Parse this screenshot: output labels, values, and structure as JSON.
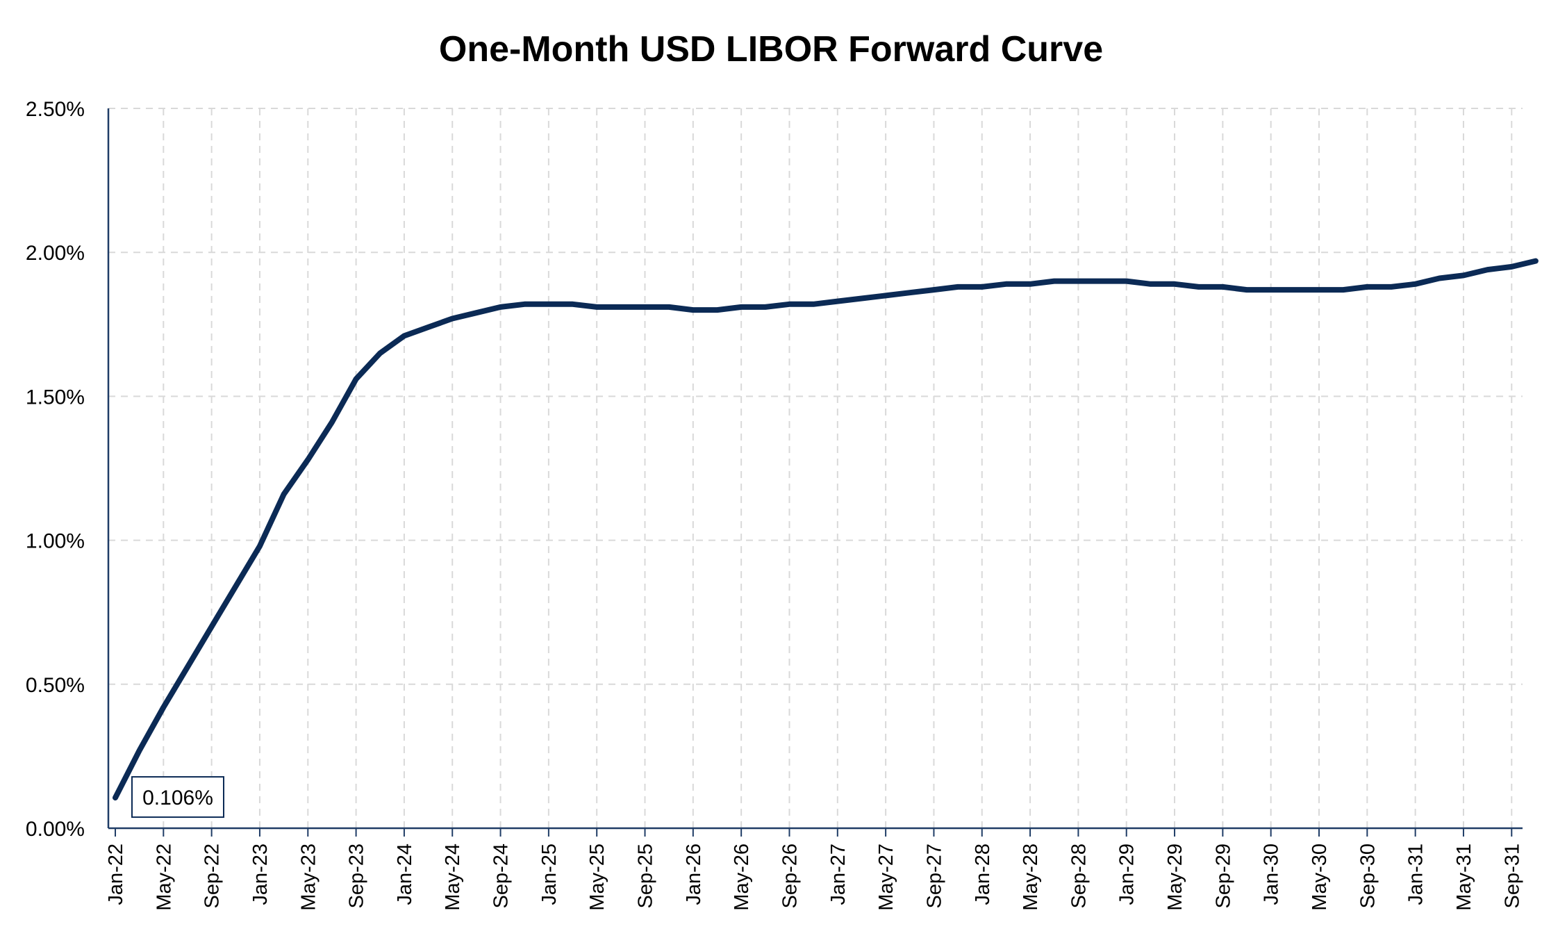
{
  "chart_data": {
    "type": "line",
    "title": "One-Month USD LIBOR Forward Curve",
    "xlabel": "",
    "ylabel": "",
    "ylim": [
      0,
      2.5
    ],
    "ytick_labels": [
      "0.00%",
      "0.50%",
      "1.00%",
      "1.50%",
      "2.00%",
      "2.50%"
    ],
    "ytick_values": [
      0,
      0.5,
      1.0,
      1.5,
      2.0,
      2.5
    ],
    "xtick_labels": [
      "Jan-22",
      "May-22",
      "Sep-22",
      "Jan-23",
      "May-23",
      "Sep-23",
      "Jan-24",
      "May-24",
      "Sep-24",
      "Jan-25",
      "May-25",
      "Sep-25",
      "Jan-26",
      "May-26",
      "Sep-26",
      "Jan-27",
      "May-27",
      "Sep-27",
      "Jan-28",
      "May-28",
      "Sep-28",
      "Jan-29",
      "May-29",
      "Sep-29",
      "Jan-30",
      "May-30",
      "Sep-30",
      "Jan-31",
      "May-31",
      "Sep-31"
    ],
    "grid": true,
    "legend": "none",
    "series": [
      {
        "color": "#0b2a55",
        "x": [
          "Jan-22",
          "Mar-22",
          "May-22",
          "Jul-22",
          "Sep-22",
          "Nov-22",
          "Jan-23",
          "Mar-23",
          "May-23",
          "Jul-23",
          "Sep-23",
          "Nov-23",
          "Jan-24",
          "Mar-24",
          "May-24",
          "Jul-24",
          "Sep-24",
          "Nov-24",
          "Jan-25",
          "Mar-25",
          "May-25",
          "Jul-25",
          "Sep-25",
          "Nov-25",
          "Jan-26",
          "Mar-26",
          "May-26",
          "Jul-26",
          "Sep-26",
          "Nov-26",
          "Jan-27",
          "Mar-27",
          "May-27",
          "Jul-27",
          "Sep-27",
          "Nov-27",
          "Jan-28",
          "Mar-28",
          "May-28",
          "Jul-28",
          "Sep-28",
          "Nov-28",
          "Jan-29",
          "Mar-29",
          "May-29",
          "Jul-29",
          "Sep-29",
          "Nov-29",
          "Jan-30",
          "Mar-30",
          "May-30",
          "Jul-30",
          "Sep-30",
          "Nov-30",
          "Jan-31",
          "Mar-31",
          "May-31",
          "Jul-31",
          "Sep-31",
          "Nov-31"
        ],
        "values": [
          0.106,
          0.27,
          0.42,
          0.56,
          0.7,
          0.84,
          0.98,
          1.16,
          1.28,
          1.41,
          1.56,
          1.65,
          1.71,
          1.74,
          1.77,
          1.79,
          1.81,
          1.82,
          1.82,
          1.82,
          1.81,
          1.81,
          1.81,
          1.81,
          1.8,
          1.8,
          1.81,
          1.81,
          1.82,
          1.82,
          1.83,
          1.84,
          1.85,
          1.86,
          1.87,
          1.88,
          1.88,
          1.89,
          1.89,
          1.9,
          1.9,
          1.9,
          1.9,
          1.89,
          1.89,
          1.88,
          1.88,
          1.87,
          1.87,
          1.87,
          1.87,
          1.87,
          1.88,
          1.88,
          1.89,
          1.91,
          1.92,
          1.94,
          1.95,
          1.97
        ]
      }
    ],
    "annotation": {
      "text": "0.106%",
      "x": "Jan-22",
      "y": 0.106
    }
  }
}
